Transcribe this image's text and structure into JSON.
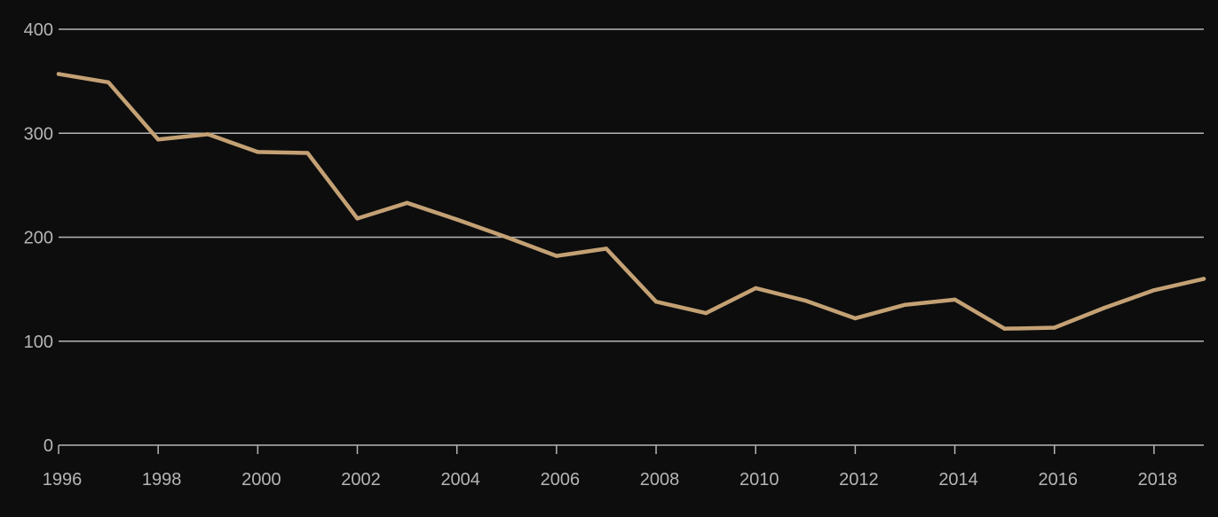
{
  "chart_data": {
    "type": "line",
    "title": "",
    "xlabel": "",
    "ylabel": "",
    "xlim": [
      1996,
      2019
    ],
    "ylim": [
      0,
      400
    ],
    "grid": true,
    "x_ticks": [
      1996,
      1998,
      2000,
      2002,
      2004,
      2006,
      2008,
      2010,
      2012,
      2014,
      2016,
      2018
    ],
    "y_ticks": [
      0,
      100,
      200,
      300,
      400
    ],
    "x_tick_labels": [
      "1996",
      "1998",
      "2000",
      "2002",
      "2004",
      "2006",
      "2008",
      "2010",
      "2012",
      "2014",
      "2016",
      "2018"
    ],
    "y_tick_labels": [
      "0",
      "100",
      "200",
      "300",
      "400"
    ],
    "series": [
      {
        "x": [
          1996,
          1997,
          1998,
          1999,
          2000,
          2001,
          2002,
          2003,
          2004,
          2005,
          2006,
          2007,
          2008,
          2009,
          2010,
          2011,
          2012,
          2013,
          2014,
          2015,
          2016,
          2017,
          2018,
          2019
        ],
        "values": [
          357,
          349,
          294,
          299,
          282,
          281,
          218,
          233,
          217,
          200,
          182,
          189,
          138,
          127,
          151,
          139,
          122,
          135,
          140,
          112,
          113,
          132,
          149,
          160
        ],
        "color": "#c4a174"
      }
    ]
  },
  "colors": {
    "background": "#0d0d0d",
    "grid": "#b5b5b5",
    "axis": "#b5b5b5",
    "tick_text": "#b5b5b5",
    "line": "#c4a174"
  }
}
